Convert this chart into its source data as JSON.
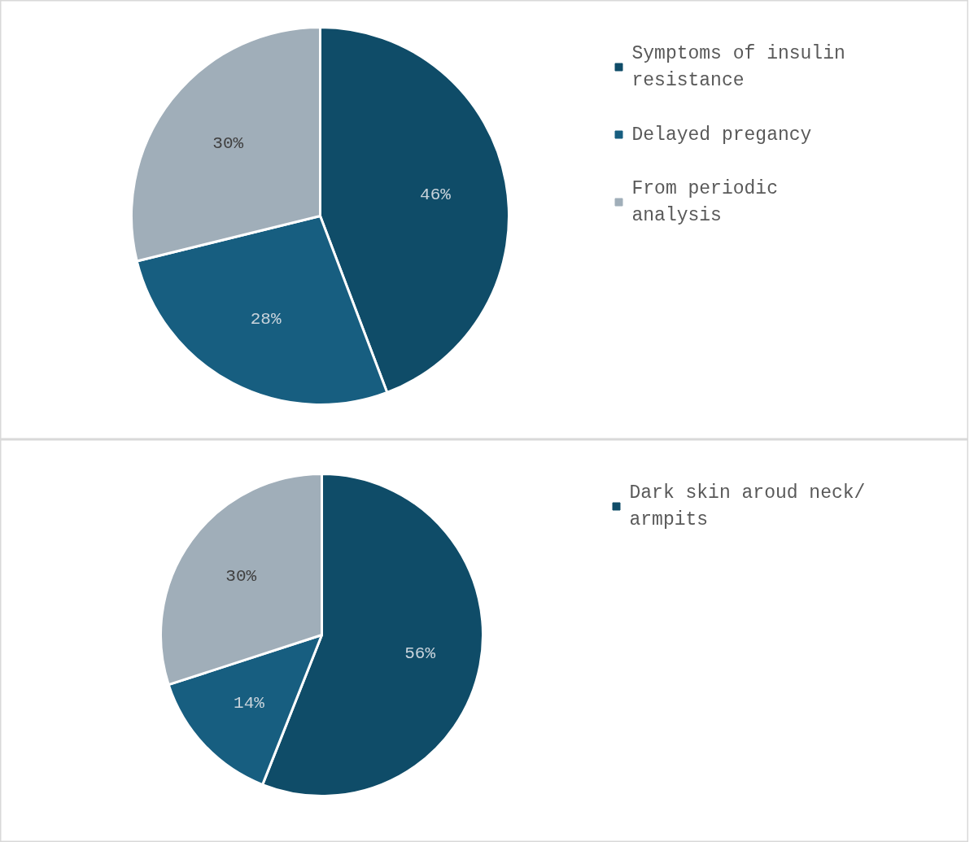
{
  "chart_data": [
    {
      "type": "pie",
      "categories": [
        "Symptoms of insulin resistance",
        "Delayed pregancy",
        "From periodic analysis"
      ],
      "values": [
        46,
        28,
        30
      ],
      "colors": [
        "#0f4c68",
        "#175e80",
        "#a0aeb9"
      ],
      "value_labels": [
        "46%",
        "28%",
        "30%"
      ],
      "legend": "right"
    },
    {
      "type": "pie",
      "categories": [
        "Dark skin aroud neck/ armpits",
        null,
        null
      ],
      "values": [
        56,
        14,
        30
      ],
      "colors": [
        "#0f4c68",
        "#175e80",
        "#a0aeb9"
      ],
      "value_labels": [
        "56%",
        "14%",
        "30%"
      ],
      "legend": "right"
    }
  ]
}
